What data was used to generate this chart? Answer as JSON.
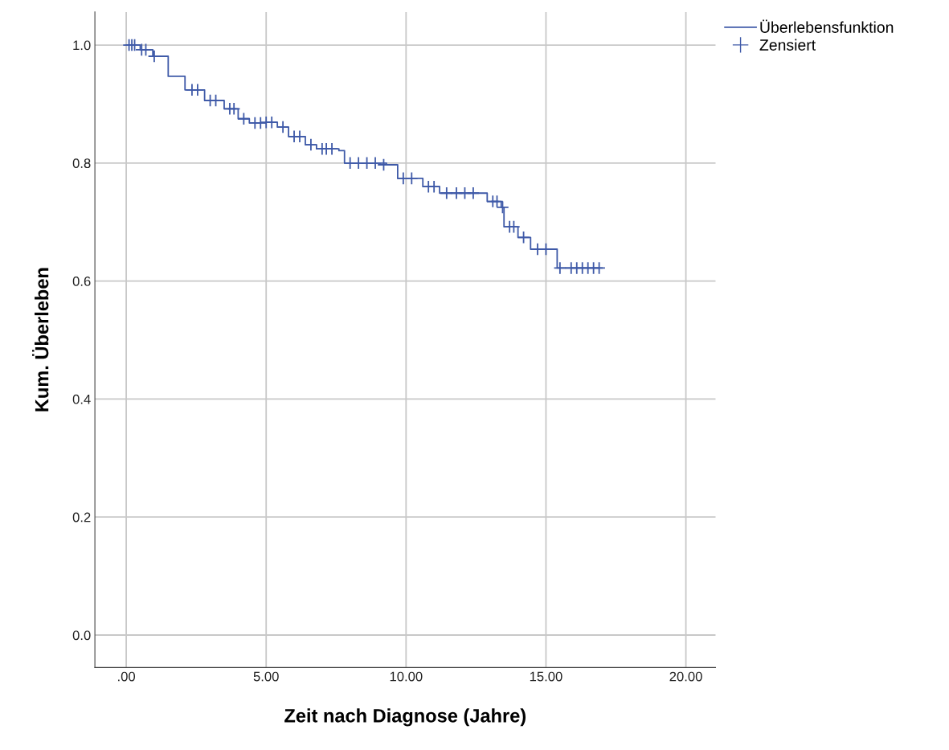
{
  "chart_data": {
    "type": "step",
    "xlabel": "Zeit nach Diagnose (Jahre)",
    "ylabel": "Kum. Überleben",
    "xlim": [
      -1.12,
      21.06
    ],
    "ylim": [
      -0.055,
      1.056
    ],
    "xticks": [
      {
        "value": 0,
        "label": ".00"
      },
      {
        "value": 5,
        "label": "5.00"
      },
      {
        "value": 10,
        "label": "10.00"
      },
      {
        "value": 15,
        "label": "15.00"
      },
      {
        "value": 20,
        "label": "20.00"
      }
    ],
    "yticks": [
      {
        "value": 0,
        "label": "0.0"
      },
      {
        "value": 0.2,
        "label": "0.2"
      },
      {
        "value": 0.4,
        "label": "0.4"
      },
      {
        "value": 0.6,
        "label": "0.6"
      },
      {
        "value": 0.8,
        "label": "0.8"
      },
      {
        "value": 1.0,
        "label": "1.0"
      }
    ],
    "grid": true,
    "legend": "top right",
    "series": [
      {
        "name": "Überlebensfunktion",
        "color": "#3f5aa8",
        "marker": "none",
        "line_style": "solid",
        "x": [
          0,
          0.5,
          0.95,
          1.5,
          2.1,
          2.8,
          3.5,
          4.0,
          4.4,
          5.0,
          5.4,
          5.8,
          6.4,
          6.8,
          7.6,
          7.8,
          9.3,
          9.7,
          10.6,
          11.2,
          12.4,
          12.9,
          13.4,
          13.5,
          14.0,
          14.45,
          15.4,
          17.0
        ],
        "values": [
          1.0,
          0.992,
          0.981,
          0.947,
          0.924,
          0.906,
          0.892,
          0.875,
          0.868,
          0.869,
          0.861,
          0.845,
          0.831,
          0.824,
          0.821,
          0.8,
          0.797,
          0.774,
          0.76,
          0.749,
          0.749,
          0.735,
          0.725,
          0.692,
          0.674,
          0.654,
          0.622,
          0.622
        ]
      },
      {
        "name": "Zensiert",
        "type": "scatter",
        "color": "#3f5aa8",
        "marker": "cross",
        "x": [
          0.1,
          0.2,
          0.3,
          0.55,
          0.7,
          1.0,
          2.35,
          2.55,
          3.0,
          3.2,
          3.7,
          3.85,
          4.2,
          4.6,
          4.8,
          5.0,
          5.2,
          5.6,
          6.0,
          6.2,
          6.6,
          7.0,
          7.15,
          7.35,
          8.0,
          8.3,
          8.6,
          8.9,
          9.2,
          9.9,
          10.2,
          10.8,
          11.0,
          11.45,
          11.8,
          12.1,
          12.4,
          13.1,
          13.25,
          13.45,
          13.7,
          13.85,
          14.2,
          14.7,
          15.0,
          15.5,
          15.9,
          16.1,
          16.3,
          16.5,
          16.7,
          16.9
        ],
        "values": [
          1.0,
          1.0,
          1.0,
          0.992,
          0.992,
          0.981,
          0.924,
          0.924,
          0.906,
          0.906,
          0.892,
          0.892,
          0.875,
          0.868,
          0.868,
          0.869,
          0.869,
          0.861,
          0.845,
          0.845,
          0.831,
          0.824,
          0.824,
          0.824,
          0.8,
          0.8,
          0.8,
          0.8,
          0.797,
          0.774,
          0.774,
          0.76,
          0.76,
          0.749,
          0.749,
          0.749,
          0.749,
          0.735,
          0.735,
          0.725,
          0.692,
          0.692,
          0.674,
          0.654,
          0.654,
          0.622,
          0.622,
          0.622,
          0.622,
          0.622,
          0.622,
          0.622
        ]
      }
    ]
  }
}
